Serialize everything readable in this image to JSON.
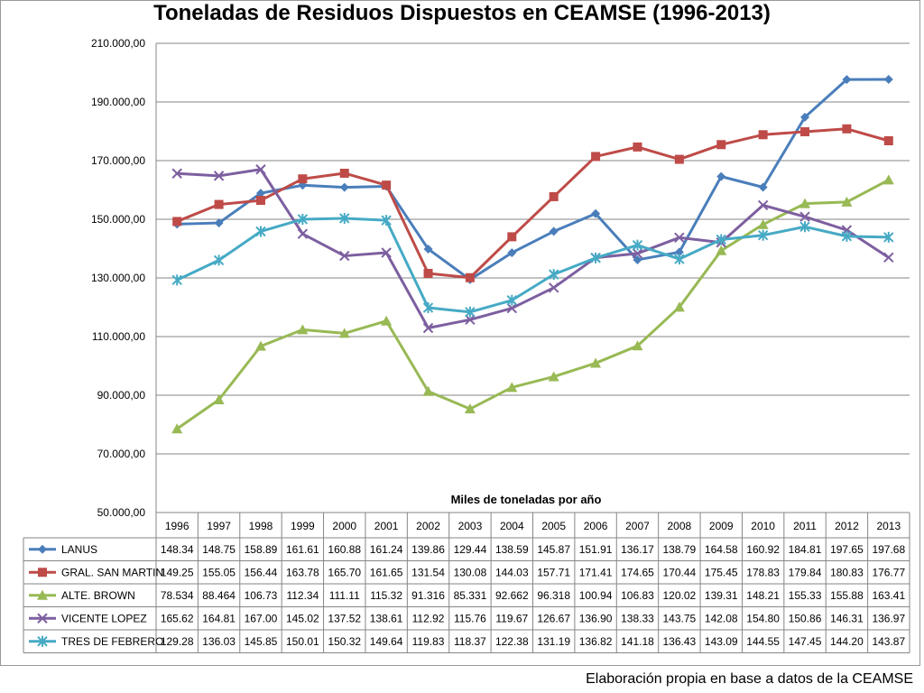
{
  "chart_data": {
    "type": "line",
    "title": "Toneladas de Residuos Dispuestos en CEAMSE (1996-2013)",
    "xlabel": "Miles de toneladas por año",
    "ylabel": "",
    "ylim": [
      50000,
      210000
    ],
    "yticks": [
      "50.000,00",
      "70.000,00",
      "90.000,00",
      "110.000,00",
      "130.000,00",
      "150.000,00",
      "170.000,00",
      "190.000,00",
      "210.000,00"
    ],
    "grid": true,
    "categories": [
      "1996",
      "1997",
      "1998",
      "1999",
      "2000",
      "2001",
      "2002",
      "2003",
      "2004",
      "2005",
      "2006",
      "2007",
      "2008",
      "2009",
      "2010",
      "2011",
      "2012",
      "2013"
    ],
    "series": [
      {
        "name": "LANUS",
        "color": "#4a7ebb",
        "marker": "diamond",
        "values": [
          148340,
          148750,
          158890,
          161610,
          160880,
          161240,
          139860,
          129440,
          138590,
          145870,
          151910,
          136170,
          138790,
          164580,
          160920,
          184810,
          197650,
          197680
        ],
        "labels": [
          "148.34",
          "148.75",
          "158.89",
          "161.61",
          "160.88",
          "161.24",
          "139.86",
          "129.44",
          "138.59",
          "145.87",
          "151.91",
          "136.17",
          "138.79",
          "164.58",
          "160.92",
          "184.81",
          "197.65",
          "197.68"
        ]
      },
      {
        "name": "GRAL. SAN MARTIN",
        "color": "#be4b48",
        "marker": "square",
        "values": [
          149250,
          155050,
          156440,
          163780,
          165700,
          161650,
          131540,
          130080,
          144030,
          157710,
          171410,
          174650,
          170440,
          175450,
          178830,
          179840,
          180830,
          176770
        ],
        "labels": [
          "149.25",
          "155.05",
          "156.44",
          "163.78",
          "165.70",
          "161.65",
          "131.54",
          "130.08",
          "144.03",
          "157.71",
          "171.41",
          "174.65",
          "170.44",
          "175.45",
          "178.83",
          "179.84",
          "180.83",
          "176.77"
        ]
      },
      {
        "name": "ALTE. BROWN",
        "color": "#98b954",
        "marker": "triangle",
        "values": [
          78534,
          88464,
          106730,
          112340,
          111110,
          115320,
          91316,
          85331,
          92662,
          96318,
          100940,
          106830,
          120020,
          139310,
          148210,
          155330,
          155880,
          163410
        ],
        "labels": [
          "78.534",
          "88.464",
          "106.73",
          "112.34",
          "111.11",
          "115.32",
          "91.316",
          "85.331",
          "92.662",
          "96.318",
          "100.94",
          "106.83",
          "120.02",
          "139.31",
          "148.21",
          "155.33",
          "155.88",
          "163.41"
        ]
      },
      {
        "name": "VICENTE LOPEZ",
        "color": "#7d5fa0",
        "marker": "x",
        "values": [
          165620,
          164810,
          167000,
          145020,
          137520,
          138610,
          112920,
          115760,
          119670,
          126670,
          136900,
          138330,
          143750,
          142080,
          154800,
          150860,
          146310,
          136970
        ],
        "labels": [
          "165.62",
          "164.81",
          "167.00",
          "145.02",
          "137.52",
          "138.61",
          "112.92",
          "115.76",
          "119.67",
          "126.67",
          "136.90",
          "138.33",
          "143.75",
          "142.08",
          "154.80",
          "150.86",
          "146.31",
          "136.97"
        ]
      },
      {
        "name": "TRES DE FEBRERO",
        "color": "#46aac5",
        "marker": "star",
        "values": [
          129280,
          136030,
          145850,
          150010,
          150320,
          149640,
          119830,
          118370,
          122380,
          131190,
          136820,
          141180,
          136430,
          143090,
          144550,
          147450,
          144200,
          143870
        ],
        "labels": [
          "129.28",
          "136.03",
          "145.85",
          "150.01",
          "150.32",
          "149.64",
          "119.83",
          "118.37",
          "122.38",
          "131.19",
          "136.82",
          "141.18",
          "136.43",
          "143.09",
          "144.55",
          "147.45",
          "144.20",
          "143.87"
        ]
      }
    ]
  },
  "footer": "Elaboración propia en base a datos de la CEAMSE"
}
